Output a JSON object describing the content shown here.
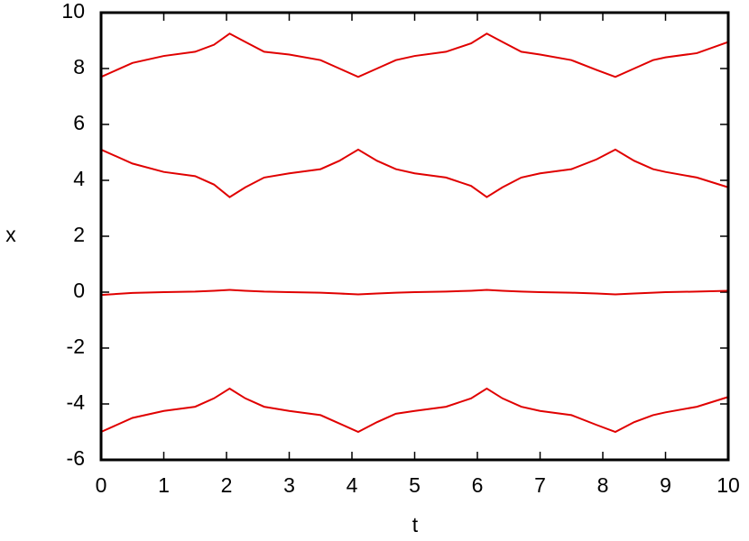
{
  "chart_data": {
    "type": "line",
    "xlabel": "t",
    "ylabel": "x",
    "x": [
      0,
      0.5,
      1,
      1.5,
      1.8,
      2.05,
      2.3,
      2.6,
      3,
      3.5,
      3.8,
      4.1,
      4.4,
      4.7,
      5,
      5.5,
      5.9,
      6.15,
      6.4,
      6.7,
      7,
      7.5,
      7.9,
      8.2,
      8.5,
      8.8,
      9,
      9.5,
      10
    ],
    "series": [
      {
        "color": "#e00000",
        "values": [
          7.7,
          8.2,
          8.45,
          8.6,
          8.85,
          9.25,
          8.95,
          8.6,
          8.5,
          8.3,
          8.0,
          7.7,
          8.0,
          8.3,
          8.45,
          8.6,
          8.9,
          9.25,
          8.95,
          8.6,
          8.5,
          8.3,
          7.95,
          7.7,
          8.0,
          8.3,
          8.4,
          8.55,
          8.95
        ]
      },
      {
        "color": "#e00000",
        "values": [
          5.1,
          4.6,
          4.3,
          4.15,
          3.85,
          3.4,
          3.75,
          4.1,
          4.25,
          4.4,
          4.7,
          5.1,
          4.7,
          4.4,
          4.25,
          4.1,
          3.8,
          3.4,
          3.75,
          4.1,
          4.25,
          4.4,
          4.75,
          5.1,
          4.7,
          4.4,
          4.3,
          4.1,
          3.75
        ]
      },
      {
        "color": "#e00000",
        "values": [
          -0.1,
          -0.03,
          0,
          0.02,
          0.05,
          0.08,
          0.05,
          0.02,
          0,
          -0.02,
          -0.05,
          -0.08,
          -0.05,
          -0.02,
          0,
          0.02,
          0.05,
          0.08,
          0.05,
          0.02,
          0,
          -0.02,
          -0.05,
          -0.08,
          -0.05,
          -0.02,
          0,
          0.02,
          0.05
        ]
      },
      {
        "color": "#e00000",
        "values": [
          -5,
          -4.5,
          -4.25,
          -4.1,
          -3.8,
          -3.45,
          -3.8,
          -4.1,
          -4.25,
          -4.4,
          -4.7,
          -5,
          -4.65,
          -4.35,
          -4.25,
          -4.1,
          -3.8,
          -3.45,
          -3.8,
          -4.1,
          -4.25,
          -4.4,
          -4.75,
          -5,
          -4.65,
          -4.4,
          -4.3,
          -4.1,
          -3.75
        ]
      }
    ],
    "xlim": [
      0,
      10
    ],
    "xticks": [
      0,
      1,
      2,
      3,
      4,
      5,
      6,
      7,
      8,
      9,
      10
    ],
    "ylim": [
      -6,
      10
    ],
    "yticks": [
      -6,
      -4,
      -2,
      0,
      2,
      4,
      6,
      8,
      10
    ],
    "grid": false
  }
}
